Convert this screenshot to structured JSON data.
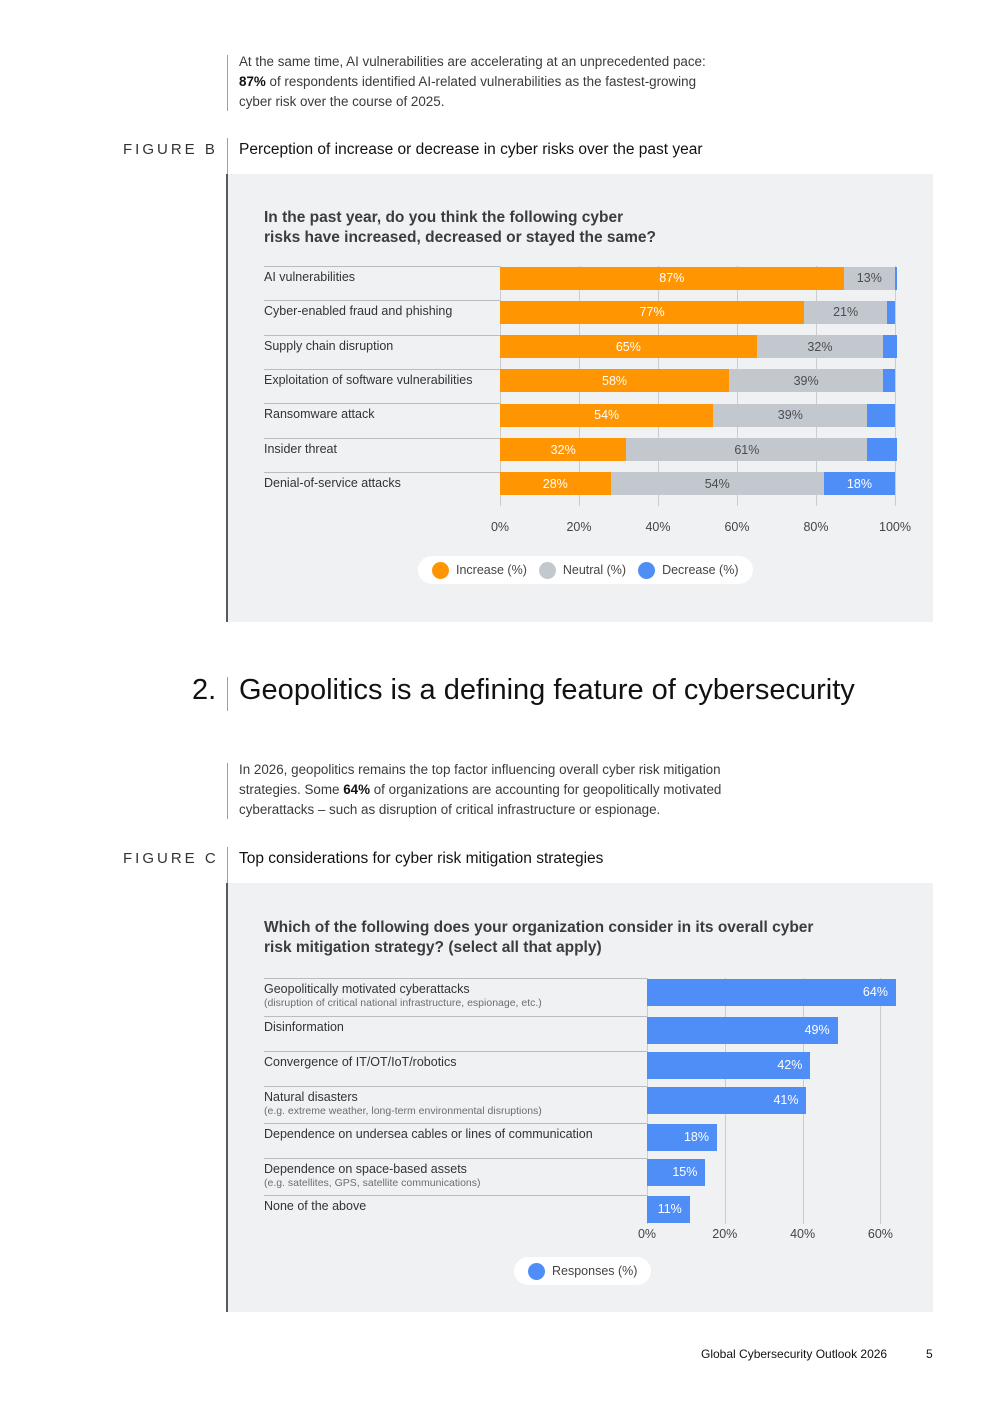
{
  "intro_b": {
    "line1": "At the same time, AI vulnerabilities are accelerating at an unprecedented pace:",
    "line2_bold": "87%",
    "line2_rest": " of respondents identified AI-related vulnerabilities as the fastest-growing",
    "line3": "cyber risk over the course of 2025."
  },
  "figure_b": {
    "label": "FIGURE B",
    "title": "Perception of increase or decrease in cyber risks over the past year",
    "question_line1": "In the past year, do you think the following cyber",
    "question_line2": "risks have increased, decreased or stayed the same?"
  },
  "section": {
    "number": "2.",
    "title": "Geopolitics is a defining feature of cybersecurity"
  },
  "intro_c": {
    "line1": "In 2026, geopolitics remains the top factor influencing overall cyber risk mitigation",
    "line2_pre": "strategies. Some ",
    "line2_bold": "64%",
    "line2_rest": " of organizations are accounting for geopolitically motivated",
    "line3": "cyberattacks – such as disruption of critical infrastructure or espionage."
  },
  "figure_c": {
    "label": "FIGURE C",
    "title": "Top considerations for cyber risk mitigation strategies",
    "question_line1": "Which of the following does your organization consider in its overall cyber",
    "question_line2": "risk mitigation strategy? (select all that apply)"
  },
  "footer": {
    "title": "Global Cybersecurity Outlook 2026",
    "page": "5"
  },
  "chart_data": [
    {
      "type": "bar",
      "orientation": "horizontal",
      "stacked": true,
      "categories": [
        "AI vulnerabilities",
        "Cyber-enabled fraud and phishing",
        "Supply chain disruption",
        "Exploitation of software vulnerabilities",
        "Ransomware attack",
        "Insider threat",
        "Denial-of-service attacks"
      ],
      "series": [
        {
          "name": "Increase (%)",
          "color": "#ff9500",
          "values": [
            87,
            77,
            65,
            58,
            54,
            32,
            28
          ],
          "labels": [
            "87%",
            "77%",
            "65%",
            "58%",
            "54%",
            "32%",
            "28%"
          ]
        },
        {
          "name": "Neutral (%)",
          "color": "#c3c8ce",
          "values": [
            13,
            21,
            32,
            39,
            39,
            61,
            54
          ],
          "labels": [
            "13%",
            "21%",
            "32%",
            "39%",
            "39%",
            "61%",
            "54%"
          ]
        },
        {
          "name": "Decrease (%)",
          "color": "#4f8ef7",
          "values": [
            0.5,
            2,
            3.5,
            3,
            7,
            7.5,
            18
          ],
          "labels": [
            "",
            "",
            "",
            "",
            "",
            "",
            "18%"
          ]
        }
      ],
      "xlim": [
        0,
        100
      ],
      "xticks": [
        "0%",
        "20%",
        "40%",
        "60%",
        "80%",
        "100%"
      ],
      "legend_position": "bottom-center"
    },
    {
      "type": "bar",
      "orientation": "horizontal",
      "categories": [
        "Geopolitically motivated cyberattacks",
        "Disinformation",
        "Convergence of IT/OT/IoT/robotics",
        "Natural disasters",
        "Dependence on undersea cables or lines of communication",
        "Dependence on space-based assets",
        "None of the above"
      ],
      "category_notes": [
        "(disruption of critical national infrastructure, espionage, etc.)",
        "",
        "",
        "(e.g. extreme weather, long-term environmental disruptions)",
        "",
        "(e.g. satellites, GPS, satellite communications)",
        ""
      ],
      "series": [
        {
          "name": "Responses (%)",
          "color": "#4f8ef7",
          "values": [
            64,
            49,
            42,
            41,
            18,
            15,
            11
          ],
          "labels": [
            "64%",
            "49%",
            "42%",
            "41%",
            "18%",
            "15%",
            "11%"
          ]
        }
      ],
      "xlim": [
        0,
        64
      ],
      "xticks": [
        "0%",
        "20%",
        "40%",
        "60%"
      ],
      "legend_position": "bottom-center"
    }
  ]
}
